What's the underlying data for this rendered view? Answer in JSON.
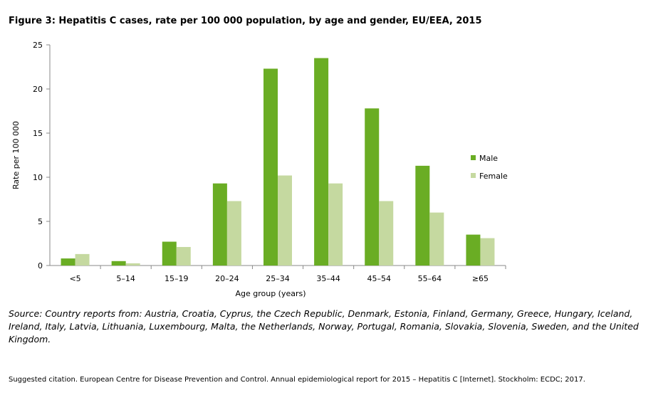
{
  "chart_data": {
    "type": "bar",
    "title": "Figure 3: Hepatitis C cases, rate per 100 000 population, by age and gender, EU/EEA, 2015",
    "xlabel": "Age group (years)",
    "ylabel": "Rate per 100 000",
    "ylim": [
      0,
      25
    ],
    "yticks": [
      0,
      5,
      10,
      15,
      20,
      25
    ],
    "categories": [
      "<5",
      "5–14",
      "15–19",
      "20–24",
      "25–34",
      "35–44",
      "45–54",
      "55–64",
      "≥65"
    ],
    "series": [
      {
        "name": "Male",
        "color": "#6aad24",
        "values": [
          0.8,
          0.5,
          2.7,
          9.3,
          22.3,
          23.5,
          17.8,
          11.3,
          3.5
        ]
      },
      {
        "name": "Female",
        "color": "#c5d9a0",
        "values": [
          1.3,
          0.25,
          2.1,
          7.3,
          10.2,
          9.3,
          7.3,
          6.0,
          3.1
        ]
      }
    ],
    "grid": false,
    "legend_position": "right"
  },
  "source": "Source: Country reports from: Austria, Croatia, Cyprus, the Czech Republic, Denmark, Estonia, Finland, Germany, Greece, Hungary, Iceland, Ireland, Italy, Latvia, Lithuania, Luxembourg, Malta, the Netherlands, Norway, Portugal, Romania, Slovakia, Slovenia, Sweden, and the United Kingdom.",
  "citation": "Suggested citation. European Centre for Disease Prevention and Control. Annual epidemiological report for 2015 – Hepatitis C [Internet]. Stockholm: ECDC; 2017."
}
